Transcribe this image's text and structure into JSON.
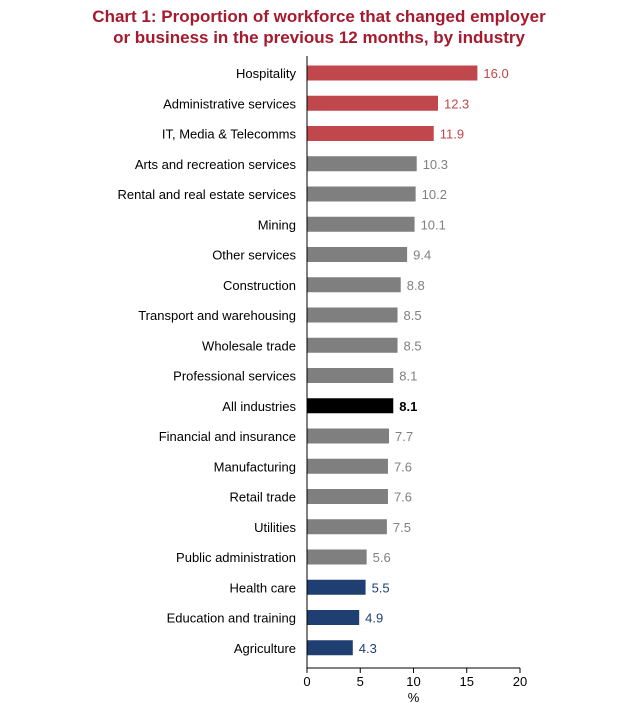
{
  "title_lines": [
    "Chart 1: Proportion of workforce that changed employer",
    "or business in the previous 12 months, by industry"
  ],
  "colors": {
    "title": "#a6192e",
    "red": "#c0474b",
    "grey": "#7f7f7f",
    "black": "#000000",
    "blue": "#1f3f73"
  },
  "chart_data": {
    "type": "bar",
    "orientation": "horizontal",
    "title": "Chart 1: Proportion of workforce that changed employer or business in the previous 12 months, by industry",
    "xlabel": "%",
    "ylabel": "",
    "xlim": [
      0,
      20
    ],
    "xticks": [
      0,
      5,
      10,
      15,
      20
    ],
    "grid": false,
    "categories": [
      "Hospitality",
      "Administrative services",
      "IT, Media & Telecomms",
      "Arts and recreation services",
      "Rental and real estate services",
      "Mining",
      "Other services",
      "Construction",
      "Transport and warehousing",
      "Wholesale trade",
      "Professional services",
      "All industries",
      "Financial and insurance",
      "Manufacturing",
      "Retail trade",
      "Utilities",
      "Public administration",
      "Health care",
      "Education and training",
      "Agriculture"
    ],
    "values": [
      16.0,
      12.3,
      11.9,
      10.3,
      10.2,
      10.1,
      9.4,
      8.8,
      8.5,
      8.5,
      8.1,
      8.1,
      7.7,
      7.6,
      7.6,
      7.5,
      5.6,
      5.5,
      4.9,
      4.3
    ],
    "labels": [
      "16.0",
      "12.3",
      "11.9",
      "10.3",
      "10.2",
      "10.1",
      "9.4",
      "8.8",
      "8.5",
      "8.5",
      "8.1",
      "8.1",
      "7.7",
      "7.6",
      "7.6",
      "7.5",
      "5.6",
      "5.5",
      "4.9",
      "4.3"
    ],
    "bar_colors": [
      "red",
      "red",
      "red",
      "grey",
      "grey",
      "grey",
      "grey",
      "grey",
      "grey",
      "grey",
      "grey",
      "black",
      "grey",
      "grey",
      "grey",
      "grey",
      "grey",
      "blue",
      "blue",
      "blue"
    ]
  }
}
